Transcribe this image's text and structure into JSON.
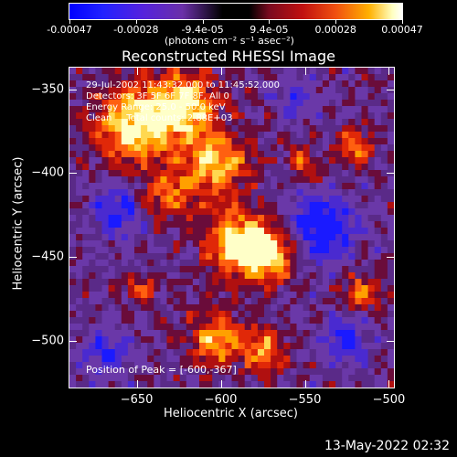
{
  "colorbar": {
    "tick_labels": [
      "-0.00047",
      "-0.00028",
      "-9.4e-05",
      "9.4e-05",
      "0.00028",
      "0.00047"
    ],
    "units": "(photons cm⁻² s⁻¹ asec⁻²)",
    "colors": [
      "#0000ff",
      "#6a30a8",
      "#000000",
      "#c01010",
      "#ffb000",
      "#ffffff"
    ]
  },
  "chart_data": {
    "type": "heatmap",
    "title": "Reconstructed RHESSI Image",
    "xlabel": "Heliocentric X (arcsec)",
    "ylabel": "Heliocentric Y (arcsec)",
    "xlim": [
      -690,
      -497
    ],
    "ylim": [
      -528,
      -337
    ],
    "x_ticks": [
      "-650",
      "-600",
      "-550",
      "-500"
    ],
    "y_ticks": [
      "-350",
      "-400",
      "-450",
      "-500"
    ],
    "peak_position": [
      -600,
      -367
    ]
  },
  "annotations": {
    "time_range": "29-Jul-2002 11:43:32.000 to 11:45:52.000",
    "detectors": "Detectors: 3F 5F 6F 7F 8F, All 0",
    "energy_range": "Energy Range: 25.0 - 50.0 keV",
    "method_counts": "Clean     Total counts: 2.88E+03",
    "peak": "Position of Peak = [-600,-367]"
  },
  "timestamp": "13-May-2022 02:32"
}
